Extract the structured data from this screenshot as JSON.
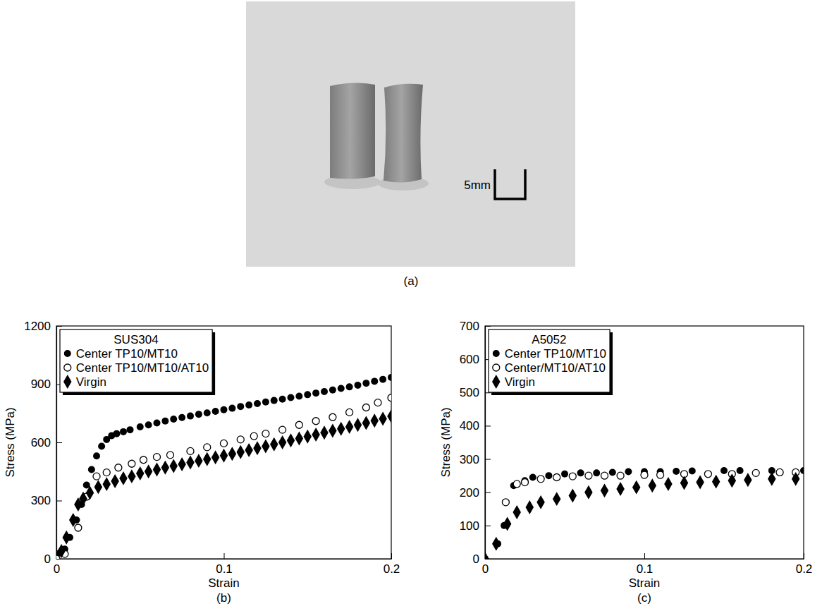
{
  "photo": {
    "label": "(a)",
    "scale_bar": "5mm"
  },
  "chart_data": [
    {
      "type": "scatter",
      "title": "SUS304",
      "caption": "(b)",
      "x_label": "Strain",
      "y_label": "Stress (MPa)",
      "xlim": [
        0,
        0.2
      ],
      "xticks": [
        0,
        0.1,
        0.2
      ],
      "ylim": [
        0,
        1200
      ],
      "yticks": [
        0,
        300,
        600,
        900,
        1200
      ],
      "grid": false,
      "legend": "upper left",
      "series": [
        {
          "name": "Center TP10/MT10",
          "color": "#000000",
          "marker": "circle",
          "x": [
            0.002,
            0.005,
            0.008,
            0.012,
            0.015,
            0.018,
            0.021,
            0.024,
            0.027,
            0.03,
            0.033,
            0.036,
            0.04,
            0.044,
            0.05,
            0.055,
            0.06,
            0.065,
            0.07,
            0.075,
            0.08,
            0.085,
            0.09,
            0.095,
            0.1,
            0.105,
            0.11,
            0.115,
            0.12,
            0.125,
            0.13,
            0.135,
            0.14,
            0.145,
            0.15,
            0.155,
            0.16,
            0.165,
            0.17,
            0.175,
            0.18,
            0.185,
            0.19,
            0.195,
            0.2
          ],
          "values": [
            30,
            50,
            110,
            200,
            280,
            380,
            460,
            530,
            580,
            615,
            635,
            645,
            655,
            665,
            680,
            690,
            700,
            710,
            720,
            728,
            736,
            745,
            752,
            760,
            768,
            776,
            785,
            793,
            800,
            808,
            816,
            823,
            831,
            838,
            846,
            854,
            862,
            870,
            878,
            886,
            895,
            905,
            915,
            925,
            935
          ]
        },
        {
          "name": "Center TP10/MT10/AT10",
          "color": "#000000",
          "marker": "circle-open",
          "x": [
            0,
            0.005,
            0.013,
            0.018,
            0.024,
            0.03,
            0.037,
            0.045,
            0.052,
            0.06,
            0.068,
            0.08,
            0.09,
            0.1,
            0.11,
            0.118,
            0.125,
            0.135,
            0.145,
            0.155,
            0.165,
            0.175,
            0.185,
            0.192,
            0.2
          ],
          "values": [
            0,
            25,
            160,
            320,
            425,
            445,
            470,
            490,
            510,
            525,
            535,
            555,
            575,
            595,
            615,
            632,
            645,
            665,
            690,
            710,
            730,
            755,
            780,
            805,
            830
          ]
        },
        {
          "name": "Virgin",
          "color": "#000000",
          "marker": "diamond",
          "x": [
            0.003,
            0.006,
            0.01,
            0.013,
            0.016,
            0.02,
            0.025,
            0.03,
            0.035,
            0.04,
            0.045,
            0.05,
            0.055,
            0.06,
            0.065,
            0.07,
            0.075,
            0.08,
            0.085,
            0.09,
            0.095,
            0.1,
            0.105,
            0.11,
            0.115,
            0.12,
            0.125,
            0.13,
            0.135,
            0.14,
            0.145,
            0.15,
            0.155,
            0.16,
            0.165,
            0.17,
            0.175,
            0.18,
            0.185,
            0.19,
            0.195,
            0.2
          ],
          "values": [
            40,
            110,
            200,
            280,
            310,
            340,
            370,
            385,
            400,
            415,
            425,
            440,
            450,
            460,
            470,
            478,
            487,
            496,
            505,
            514,
            523,
            532,
            541,
            550,
            560,
            570,
            580,
            590,
            600,
            610,
            620,
            630,
            640,
            650,
            660,
            670,
            680,
            690,
            700,
            712,
            722,
            735
          ]
        }
      ]
    },
    {
      "type": "scatter",
      "title": "A5052",
      "caption": "(c)",
      "x_label": "Strain",
      "y_label": "Stress (MPa)",
      "xlim": [
        0,
        0.2
      ],
      "xticks": [
        0,
        0.1,
        0.2
      ],
      "ylim": [
        0,
        700
      ],
      "yticks": [
        0,
        100,
        200,
        300,
        400,
        500,
        600,
        700
      ],
      "grid": false,
      "legend": "upper left",
      "series": [
        {
          "name": "Center TP10/MT10",
          "color": "#000000",
          "marker": "circle",
          "x": [
            0,
            0.008,
            0.012,
            0.018,
            0.025,
            0.03,
            0.04,
            0.05,
            0.06,
            0.07,
            0.08,
            0.09,
            0.1,
            0.11,
            0.12,
            0.13,
            0.15,
            0.16,
            0.18,
            0.2
          ],
          "values": [
            0,
            45,
            100,
            220,
            235,
            245,
            250,
            255,
            258,
            258,
            260,
            262,
            262,
            262,
            263,
            264,
            265,
            265,
            265,
            265
          ]
        },
        {
          "name": "Center/MT10/AT10",
          "color": "#000000",
          "marker": "circle-open",
          "x": [
            0.013,
            0.02,
            0.025,
            0.035,
            0.045,
            0.055,
            0.065,
            0.075,
            0.085,
            0.1,
            0.11,
            0.125,
            0.14,
            0.155,
            0.17,
            0.185,
            0.195
          ],
          "values": [
            170,
            225,
            230,
            240,
            245,
            248,
            250,
            250,
            250,
            252,
            252,
            255,
            255,
            255,
            258,
            260,
            260
          ]
        },
        {
          "name": "Virgin",
          "color": "#000000",
          "marker": "diamond",
          "x": [
            0,
            0.007,
            0.014,
            0.02,
            0.028,
            0.035,
            0.045,
            0.055,
            0.065,
            0.075,
            0.085,
            0.095,
            0.105,
            0.115,
            0.125,
            0.135,
            0.145,
            0.155,
            0.165,
            0.18,
            0.195
          ],
          "values": [
            0,
            45,
            105,
            140,
            155,
            170,
            180,
            190,
            200,
            205,
            210,
            215,
            220,
            225,
            228,
            230,
            232,
            235,
            237,
            240,
            240
          ]
        }
      ]
    }
  ]
}
